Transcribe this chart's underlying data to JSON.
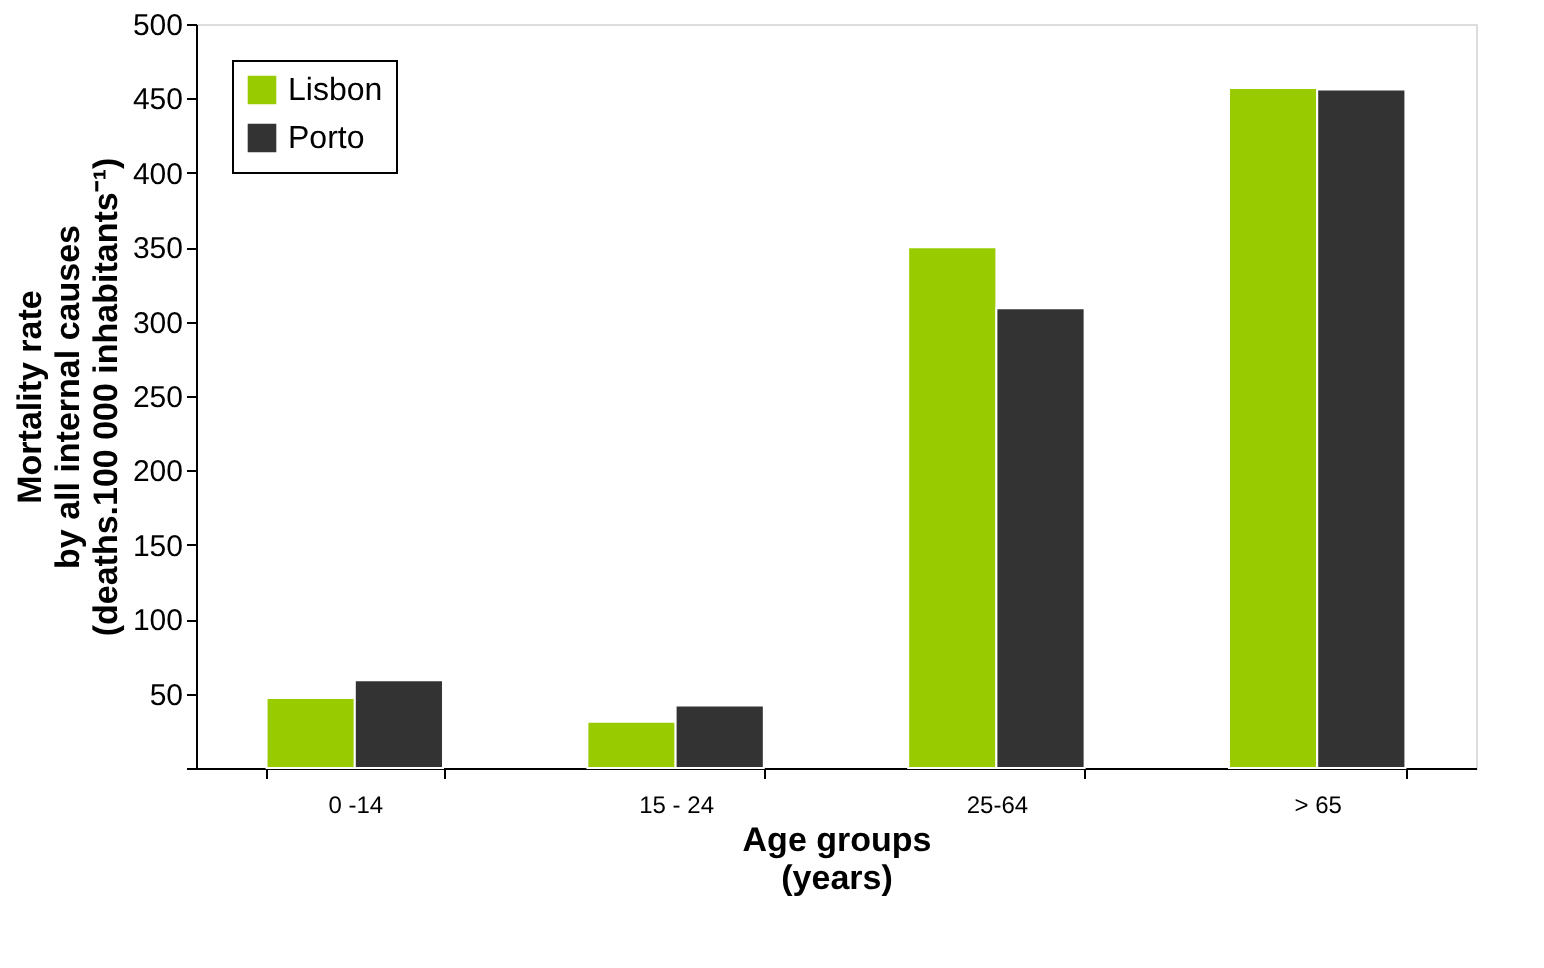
{
  "chart_data": {
    "type": "bar",
    "xlabel": "Age groups\n(years)",
    "ylabel": "Mortality rate\nby all internal causes\n(deaths.100 000 inhabitants⁻¹)",
    "categories": [
      "0 -14",
      "15 - 24",
      "25-64",
      "> 65"
    ],
    "series": [
      {
        "name": "Lisbon",
        "color": "#99cc00",
        "values": [
          47,
          31,
          350,
          457
        ]
      },
      {
        "name": "Porto",
        "color": "#333333",
        "values": [
          59,
          42,
          309,
          456
        ]
      }
    ],
    "ylim": [
      0,
      500
    ],
    "yticks": [
      {
        "value": 0,
        "label": null
      },
      50,
      100,
      150,
      200,
      250,
      300,
      350,
      400,
      450,
      500
    ],
    "grid": false,
    "legend": "top left"
  }
}
